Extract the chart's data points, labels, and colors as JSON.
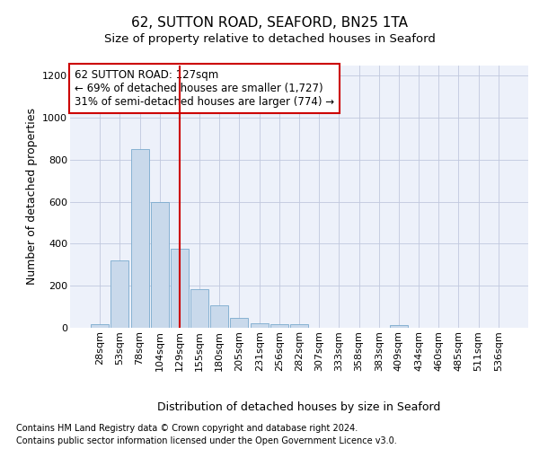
{
  "title_line1": "62, SUTTON ROAD, SEAFORD, BN25 1TA",
  "title_line2": "Size of property relative to detached houses in Seaford",
  "xlabel": "Distribution of detached houses by size in Seaford",
  "ylabel": "Number of detached properties",
  "footer_line1": "Contains HM Land Registry data © Crown copyright and database right 2024.",
  "footer_line2": "Contains public sector information licensed under the Open Government Licence v3.0.",
  "categories": [
    "28sqm",
    "53sqm",
    "78sqm",
    "104sqm",
    "129sqm",
    "155sqm",
    "180sqm",
    "205sqm",
    "231sqm",
    "256sqm",
    "282sqm",
    "307sqm",
    "333sqm",
    "358sqm",
    "383sqm",
    "409sqm",
    "434sqm",
    "460sqm",
    "485sqm",
    "511sqm",
    "536sqm"
  ],
  "values": [
    15,
    320,
    850,
    600,
    375,
    185,
    105,
    45,
    20,
    18,
    18,
    0,
    0,
    0,
    0,
    12,
    0,
    0,
    0,
    0,
    0
  ],
  "bar_color": "#c9d9eb",
  "bar_edge_color": "#7aaace",
  "vline_bin_index": 4,
  "vline_color": "#cc0000",
  "annotation_line1": "62 SUTTON ROAD: 127sqm",
  "annotation_line2": "← 69% of detached houses are smaller (1,727)",
  "annotation_line3": "31% of semi-detached houses are larger (774) →",
  "annotation_box_edgecolor": "#cc0000",
  "ylim_max": 1250,
  "yticks": [
    0,
    200,
    400,
    600,
    800,
    1000,
    1200
  ],
  "grid_color": "#c0c8de",
  "bg_color": "#edf1fa",
  "fig_bg": "#ffffff",
  "title_fontsize": 11,
  "subtitle_fontsize": 9.5,
  "ylabel_fontsize": 9,
  "xlabel_fontsize": 9,
  "tick_fontsize": 8,
  "ann_fontsize": 8.5,
  "footer_fontsize": 7
}
